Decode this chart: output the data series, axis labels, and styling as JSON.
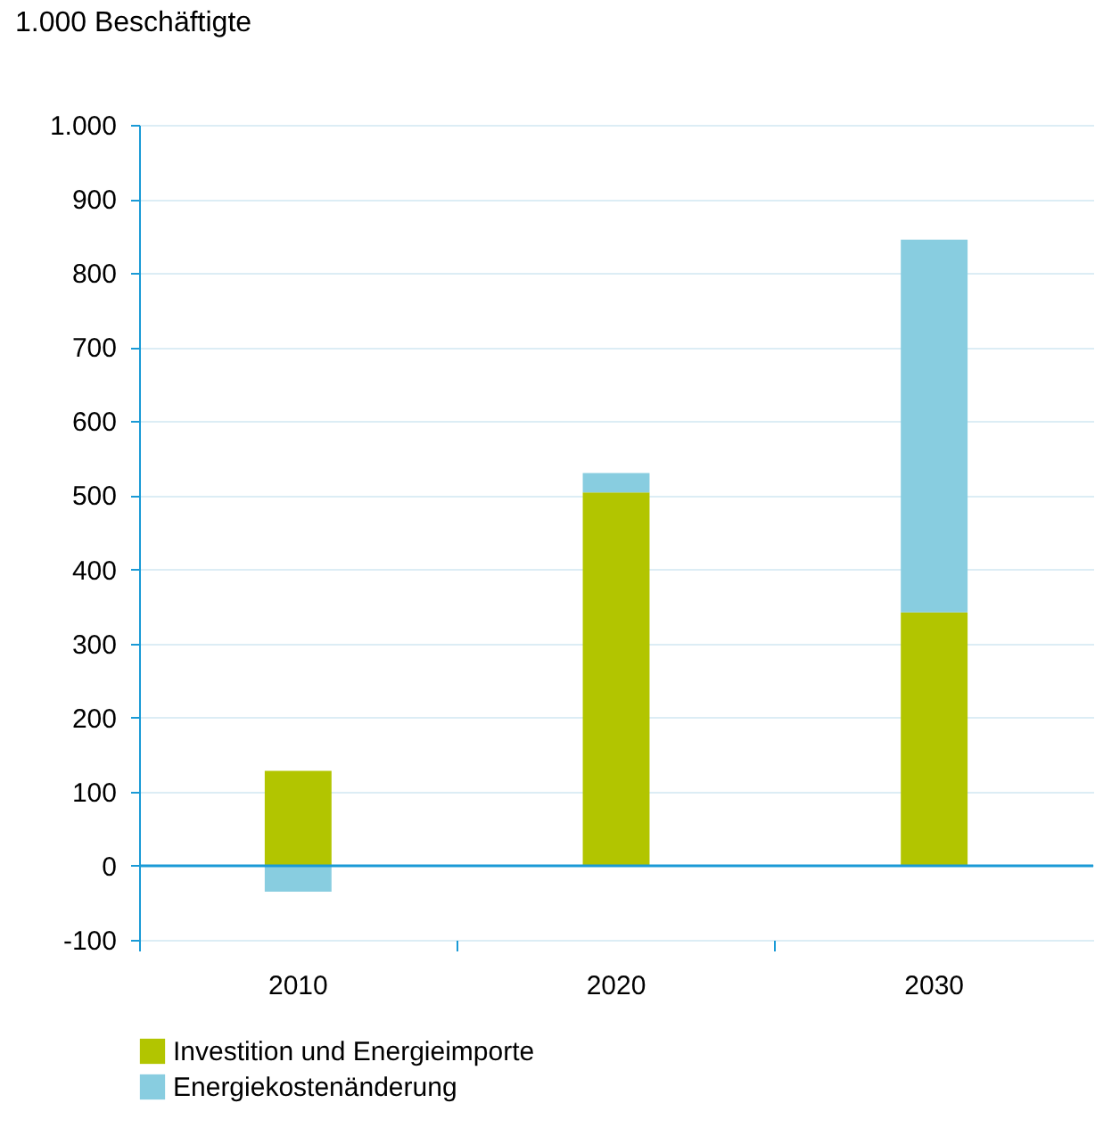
{
  "chart_data": {
    "type": "bar",
    "ylabel": "1.000 Beschäftigte",
    "categories": [
      "2010",
      "2020",
      "2030"
    ],
    "stacked": true,
    "series": [
      {
        "name": "Investition und Energieimporte",
        "color": "#b2c500",
        "values": [
          128,
          504,
          342
        ]
      },
      {
        "name": "Energiekostenänderung",
        "color": "#88cde0",
        "values": [
          -35,
          26,
          503
        ]
      }
    ],
    "ylim": [
      -100,
      1000
    ],
    "yticks": [
      -100,
      0,
      100,
      200,
      300,
      400,
      500,
      600,
      700,
      800,
      900,
      {
        "value": 1000,
        "label": "1.000"
      }
    ],
    "ref_lines": [
      {
        "axis": "y",
        "value": 0,
        "color": "#1a9ad6"
      }
    ],
    "grid": true,
    "legend": "bottom"
  }
}
